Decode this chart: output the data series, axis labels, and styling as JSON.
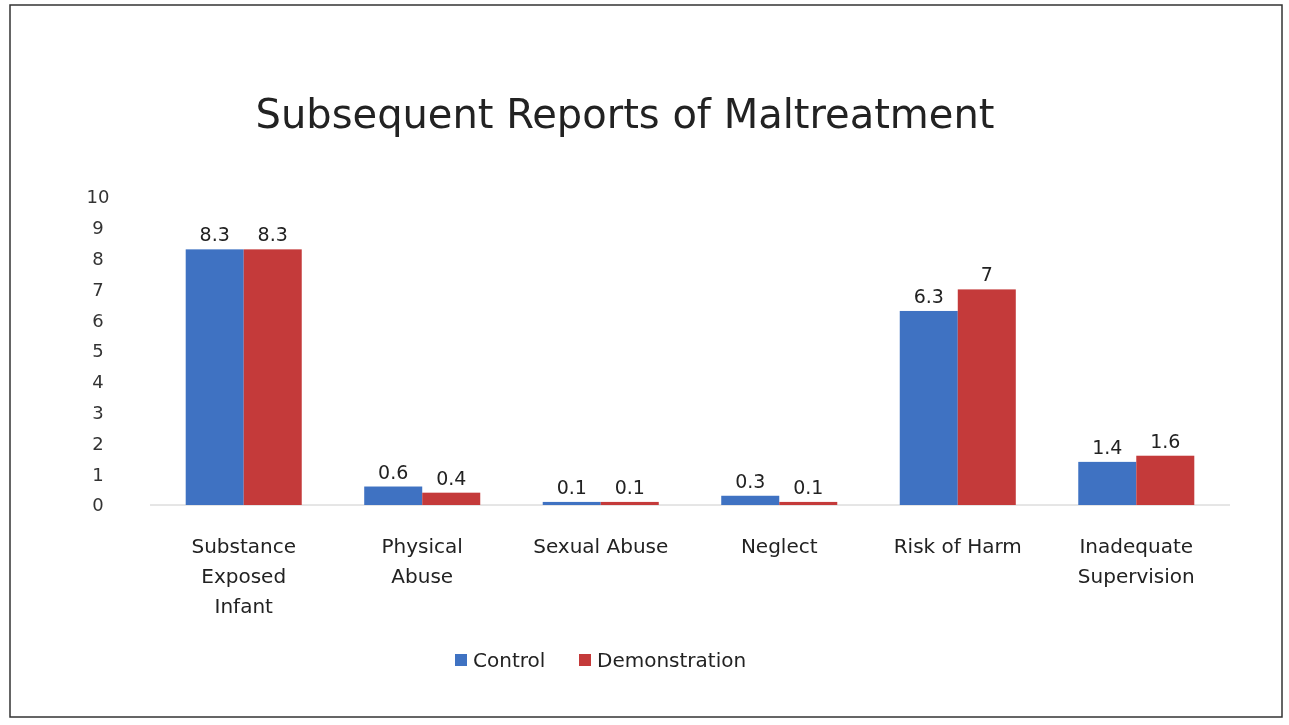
{
  "chart_data": {
    "type": "bar",
    "title": "Subsequent Reports of Maltreatment",
    "categories": [
      "Substance Exposed Infant",
      "Physical Abuse",
      "Sexual Abuse",
      "Neglect",
      "Risk of Harm",
      "Inadequate Supervision"
    ],
    "series": [
      {
        "name": "Control",
        "color": "#3f72c2",
        "values": [
          8.3,
          0.6,
          0.1,
          0.3,
          6.3,
          1.4
        ]
      },
      {
        "name": "Demonstration",
        "color": "#c43a3a",
        "values": [
          8.3,
          0.4,
          0.1,
          0.1,
          7,
          1.6
        ]
      }
    ],
    "ylim": [
      0,
      10
    ],
    "yticks": [
      0,
      1,
      2,
      3,
      4,
      5,
      6,
      7,
      8,
      9,
      10
    ],
    "data_labels": true,
    "legend": "bottom",
    "grid": false
  }
}
